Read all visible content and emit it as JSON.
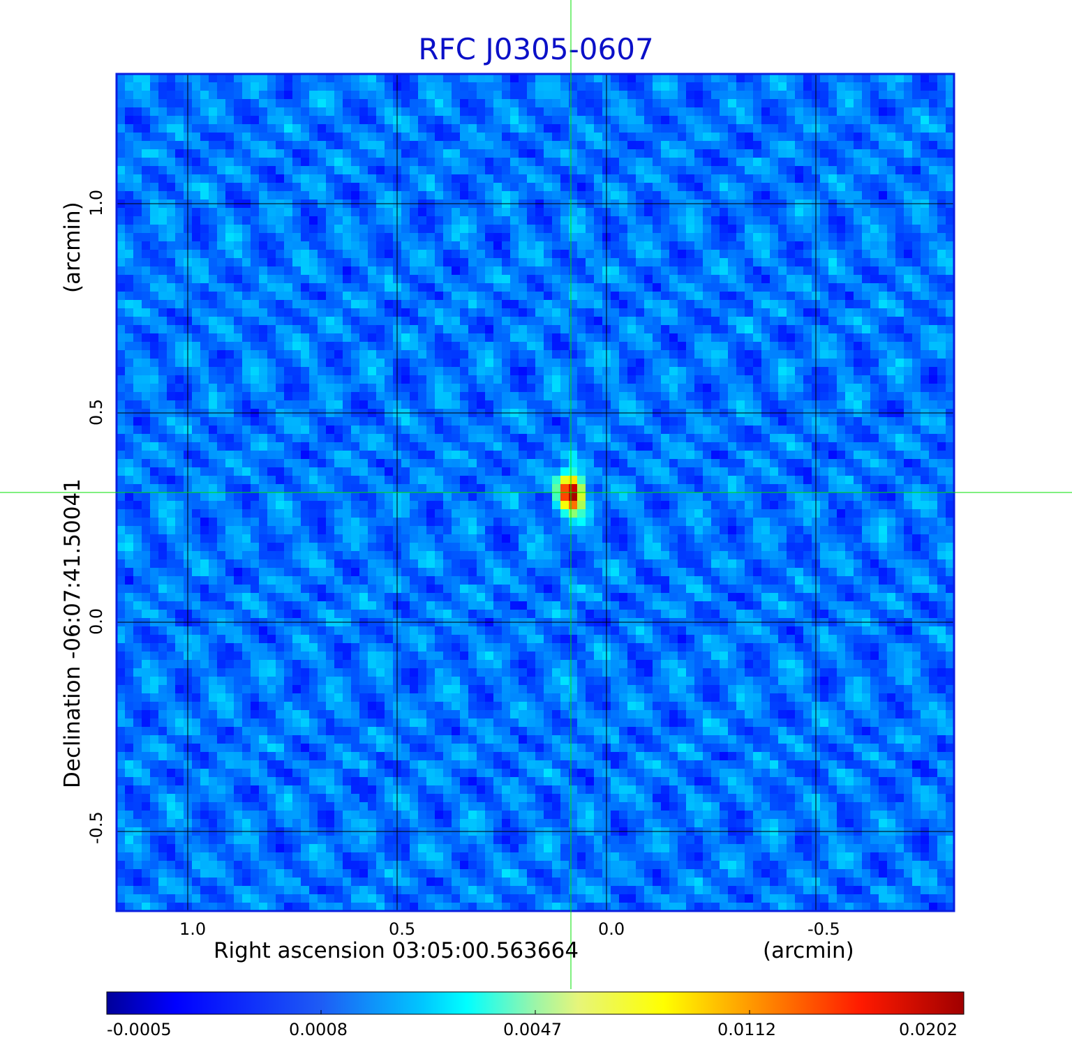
{
  "chart_data": {
    "type": "heatmap",
    "title": "RFC J0305-0607",
    "xlabel": "Right ascension  03:05:00.563664",
    "xunit": "(arcmin)",
    "ylabel": "Declination  -06:07:41.50041",
    "yunit": "(arcmin)",
    "xlim": [
      1.17,
      -0.83
    ],
    "ylim": [
      -0.69,
      1.31
    ],
    "x_ticks": [
      "1.0",
      "0.5",
      "0.0",
      "-0.5"
    ],
    "x_tick_values": [
      1.0,
      0.5,
      0.0,
      -0.5
    ],
    "y_ticks": [
      "1.0",
      "0.5",
      "0.0",
      "-0.5"
    ],
    "y_tick_values": [
      1.0,
      0.5,
      0.0,
      -0.5
    ],
    "grid": true,
    "crosshair": {
      "x": 0.085,
      "y": 0.31,
      "color": "#00e000"
    },
    "source_peak": {
      "x": 0.085,
      "y": 0.31,
      "value": 0.0202
    },
    "colorbar": {
      "colormap": "jet",
      "tick_labels": [
        "-0.0005",
        "0.0008",
        "0.0047",
        "0.0112",
        "0.0202"
      ],
      "tick_values": [
        -0.0005,
        0.0008,
        0.0047,
        0.0112,
        0.0202
      ]
    },
    "background_level": 0.0003
  },
  "colors": {
    "title": "#0b10c8",
    "frame": "#0a1ee0",
    "grid": "#000000",
    "crosshair": "#00e000"
  }
}
